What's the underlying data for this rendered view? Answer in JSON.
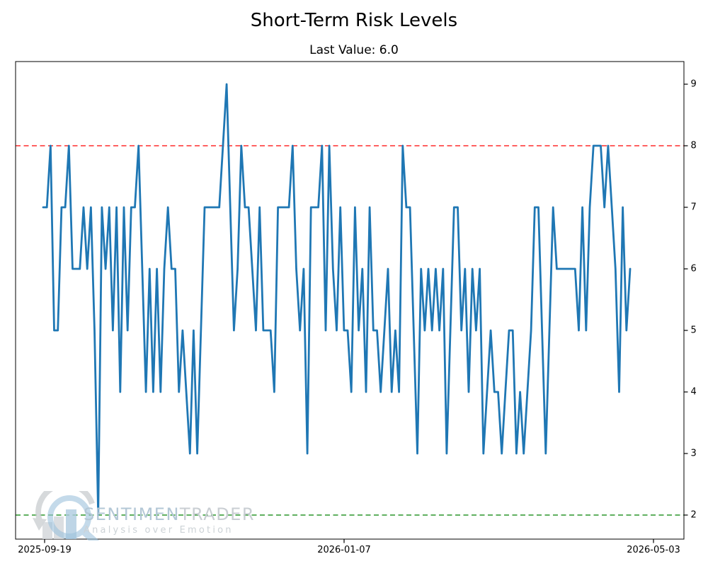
{
  "chart_data": {
    "type": "line",
    "title": "Short-Term Risk Levels",
    "subtitle": "Last Value: 6.0",
    "last_value": 6.0,
    "ylabel": "",
    "xlabel": "",
    "ylim": [
      1.6,
      9.4
    ],
    "grid": false,
    "legend_position": "none",
    "y_ticks": [
      9,
      8,
      7,
      6,
      5,
      4,
      3,
      2
    ],
    "x_ticks": [
      {
        "label": "2025-09-19"
      },
      {
        "label": "2026-01-07"
      },
      {
        "label": "2026-05-03"
      }
    ],
    "reference_lines": [
      {
        "name": "upper-threshold",
        "value": 8,
        "color": "#ff0000",
        "style": "dashed"
      },
      {
        "name": "lower-threshold",
        "value": 2,
        "color": "#008000",
        "style": "dashed"
      }
    ],
    "line_color": "#1f77b4",
    "series": [
      {
        "name": "Short-Term Risk Levels",
        "values": [
          7,
          7,
          8,
          5,
          5,
          7,
          7,
          8,
          6,
          6,
          6,
          7,
          6,
          7,
          5,
          2,
          7,
          6,
          7,
          5,
          7,
          4,
          7,
          5,
          7,
          7,
          8,
          6,
          4,
          6,
          4,
          6,
          4,
          6,
          7,
          6,
          6,
          4,
          5,
          4,
          3,
          5,
          3,
          5,
          7,
          7,
          7,
          7,
          7,
          8,
          9,
          7,
          5,
          6,
          8,
          7,
          7,
          6,
          5,
          7,
          5,
          5,
          5,
          4,
          7,
          7,
          7,
          7,
          8,
          6,
          5,
          6,
          3,
          7,
          7,
          7,
          8,
          5,
          8,
          6,
          5,
          7,
          5,
          5,
          4,
          7,
          5,
          6,
          4,
          7,
          5,
          5,
          4,
          5,
          6,
          4,
          5,
          4,
          8,
          7,
          7,
          5,
          3,
          6,
          5,
          6,
          5,
          6,
          5,
          6,
          3,
          5,
          7,
          7,
          5,
          6,
          4,
          6,
          5,
          6,
          3,
          4,
          5,
          4,
          4,
          3,
          4,
          5,
          5,
          3,
          4,
          3,
          4,
          5,
          7,
          7,
          5,
          3,
          5,
          7,
          6,
          6,
          6,
          6,
          6,
          6,
          5,
          7,
          5,
          7,
          8,
          8,
          8,
          7,
          8,
          7,
          6,
          4,
          7,
          5,
          6
        ]
      }
    ]
  },
  "watermark": {
    "brand_part1": "SENTIMEN",
    "brand_part2": "TRADER",
    "tagline": "Analysis over Emotion"
  }
}
